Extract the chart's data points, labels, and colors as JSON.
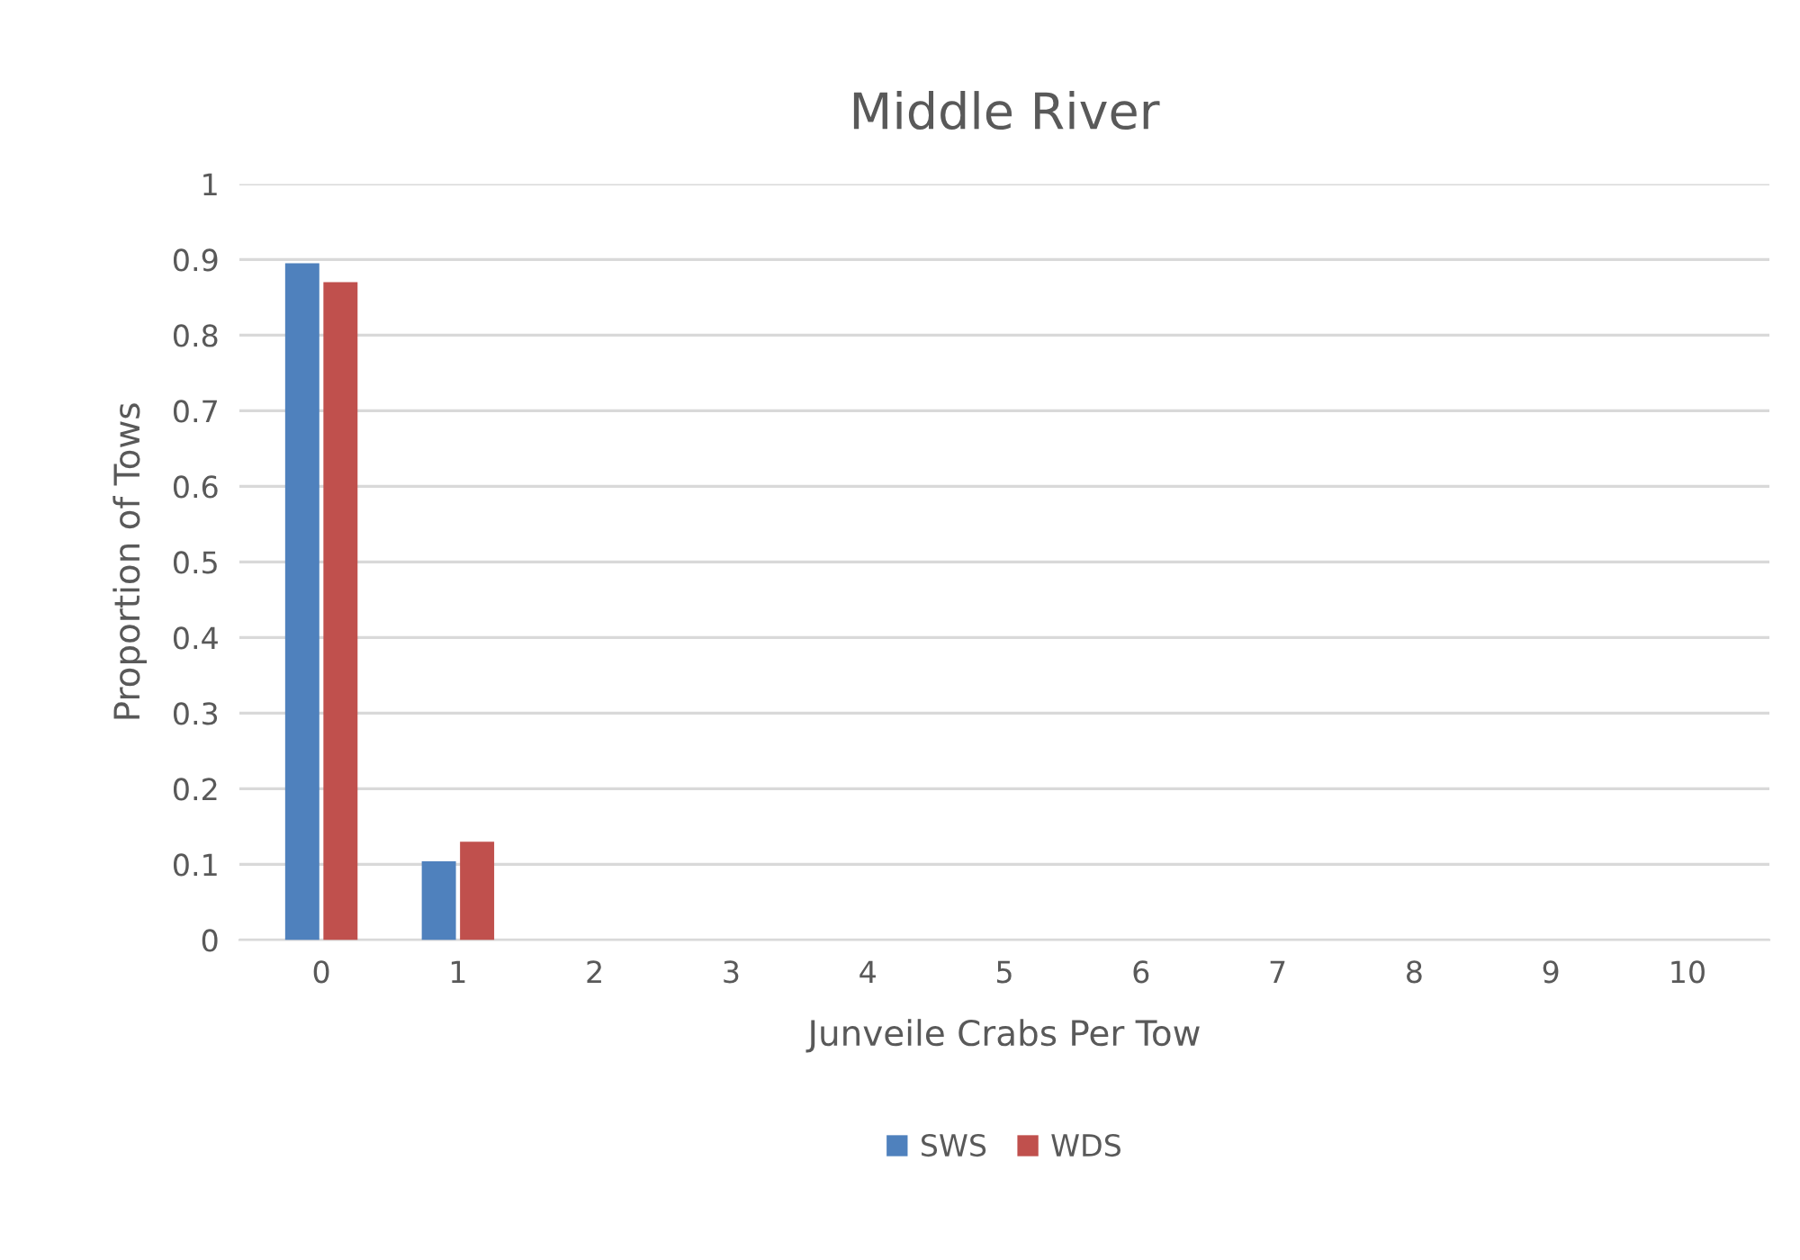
{
  "chart_data": {
    "type": "bar",
    "title": "Middle River",
    "xlabel": "Junveile Crabs Per Tow",
    "ylabel": "Proportion of Tows",
    "categories": [
      "0",
      "1",
      "2",
      "3",
      "4",
      "5",
      "6",
      "7",
      "8",
      "9",
      "10"
    ],
    "series": [
      {
        "name": "SWS",
        "color": "#4f81bd",
        "values": [
          0.895,
          0.104,
          0,
          0,
          0,
          0,
          0,
          0,
          0,
          0,
          0
        ]
      },
      {
        "name": "WDS",
        "color": "#c0504d",
        "values": [
          0.87,
          0.13,
          0,
          0,
          0,
          0,
          0,
          0,
          0,
          0,
          0
        ]
      }
    ],
    "ylim": [
      0,
      1
    ],
    "yticks": [
      0,
      0.1,
      0.2,
      0.3,
      0.4,
      0.5,
      0.6,
      0.7,
      0.8,
      0.9,
      1
    ],
    "grid": "y",
    "legend": "bottom"
  }
}
